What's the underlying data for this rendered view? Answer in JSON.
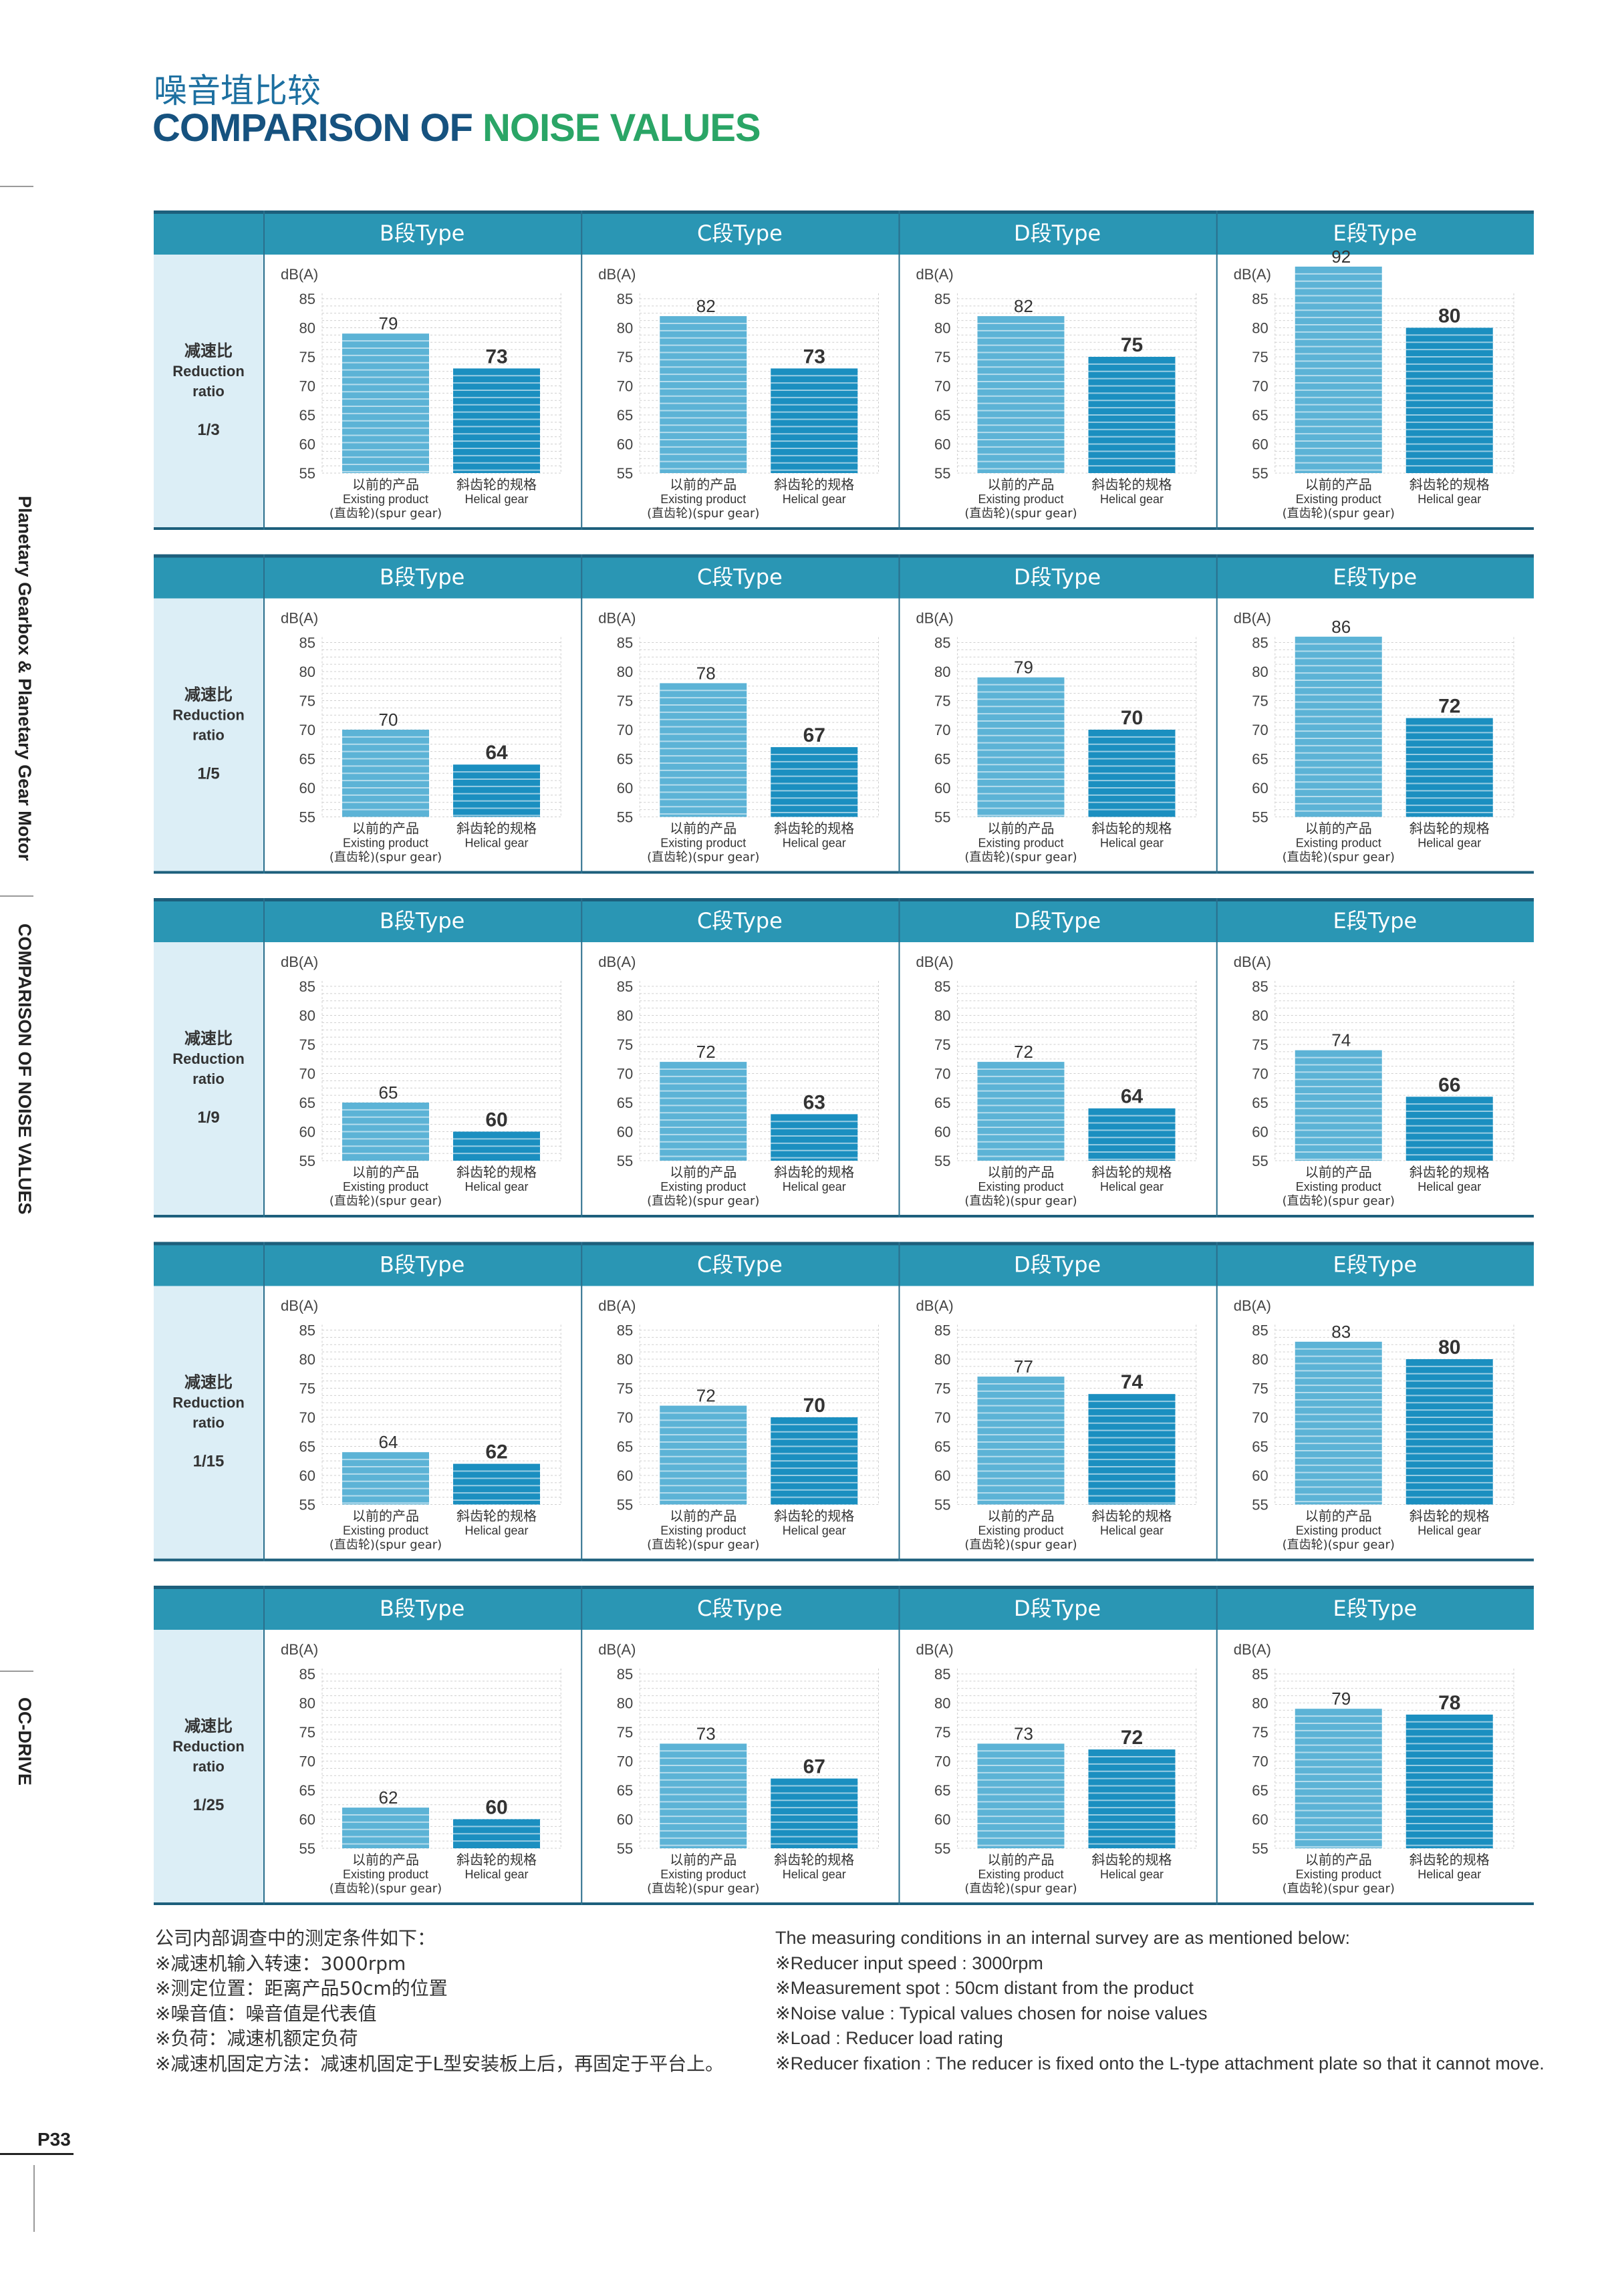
{
  "header": {
    "title_cn": "噪音埴比较",
    "title_en_part1": "COMPARISON OF ",
    "title_en_part2": "NOISE VALUES"
  },
  "sidebar": {
    "text1": "Planetary Gearbox & Planetary Gear Motor",
    "text2": "COMPARISON OF NOISE VALUES",
    "text3": "OC-DRIVE"
  },
  "colors": {
    "header_band": "#2a96b4",
    "row_panel": "#dceef6",
    "bar_existing": "#5cb3d6",
    "bar_helical": "#1b8fc0",
    "axis_text": "#444444",
    "label_text": "#333333"
  },
  "chart_data": {
    "type": "bar",
    "ylabel": "dB(A)",
    "ylim": [
      55,
      85
    ],
    "yticks": [
      85,
      80,
      75,
      70,
      65,
      60,
      55
    ],
    "types": [
      "B段Type",
      "C段Type",
      "D段Type",
      "E段Type"
    ],
    "row_label_cn": "减速比",
    "row_label_en1": "Reduction",
    "row_label_en2": "ratio",
    "categories": [
      {
        "cn": "以前的产品",
        "en": "Existing product",
        "note": "(直齿轮)(spur gear)"
      },
      {
        "cn": "斜齿轮的规格",
        "en": "Helical gear",
        "note": ""
      }
    ],
    "rows": [
      {
        "ratio": "1/3",
        "values": [
          [
            79,
            73
          ],
          [
            82,
            73
          ],
          [
            82,
            75
          ],
          [
            92,
            80
          ]
        ]
      },
      {
        "ratio": "1/5",
        "values": [
          [
            70,
            64
          ],
          [
            78,
            67
          ],
          [
            79,
            70
          ],
          [
            86,
            72
          ]
        ]
      },
      {
        "ratio": "1/9",
        "values": [
          [
            65,
            60
          ],
          [
            72,
            63
          ],
          [
            72,
            64
          ],
          [
            74,
            66
          ]
        ]
      },
      {
        "ratio": "1/15",
        "values": [
          [
            64,
            62
          ],
          [
            72,
            70
          ],
          [
            77,
            74
          ],
          [
            83,
            80
          ]
        ]
      },
      {
        "ratio": "1/25",
        "values": [
          [
            62,
            60
          ],
          [
            73,
            67
          ],
          [
            73,
            72
          ],
          [
            79,
            78
          ]
        ]
      }
    ]
  },
  "notes_cn": [
    "公司内部调查中的测定条件如下：",
    "※减速机输入转速：3000rpm",
    "※测定位置：距离产品50cm的位置",
    "※噪音值：噪音值是代表值",
    "※负荷：减速机额定负荷",
    "※减速机固定方法：减速机固定于L型安装板上后，再固定于平台上。"
  ],
  "notes_en": [
    "The measuring conditions in an internal survey are as mentioned below:",
    "※Reducer input speed : 3000rpm",
    "※Measurement spot : 50cm distant from the product",
    "※Noise value : Typical values chosen for noise values",
    "※Load : Reducer load rating",
    "※Reducer fixation : The reducer is fixed onto the L-type attachment plate so that it cannot move."
  ],
  "footer": {
    "page": "P33"
  }
}
